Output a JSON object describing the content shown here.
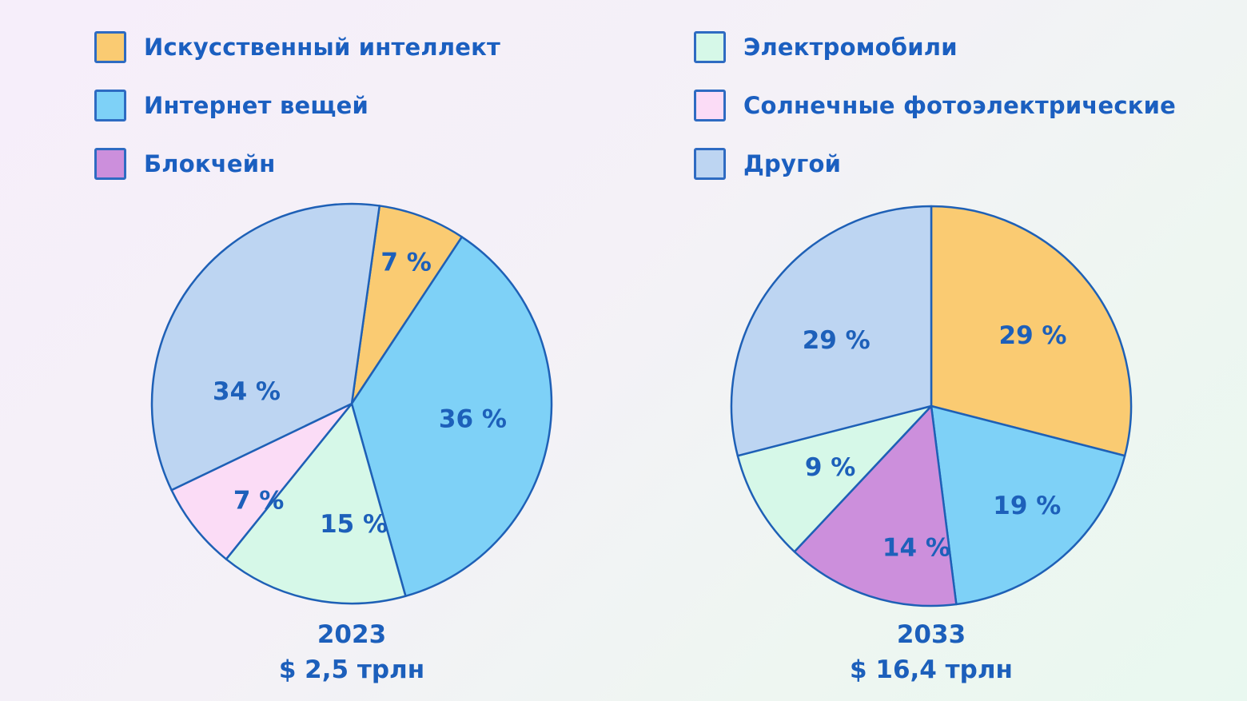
{
  "background": {
    "gradient_from": "#f6eefa",
    "gradient_to": "#e9f8f0"
  },
  "colors": {
    "text": "#1b5fc0",
    "pie_stroke": "#1e60b6",
    "swatch_border": "#2e6bc2",
    "ai_orange": "#facb72",
    "iot_blue": "#7ed1f7",
    "blockchain_purple": "#cc8fdc",
    "ev_mint": "#d6f8e8",
    "solar_pink": "#fbdcf6",
    "other_periwinkle": "#bdd5f2"
  },
  "legend": {
    "columns": [
      {
        "items": [
          {
            "label": "Искусственный интеллект",
            "color": "#facb72"
          },
          {
            "label": "Интернет вещей",
            "color": "#7ed1f7"
          },
          {
            "label": "Блокчейн",
            "color": "#cc8fdc"
          }
        ]
      },
      {
        "items": [
          {
            "label": "Электромобили",
            "color": "#d6f8e8"
          },
          {
            "label": "Солнечные фотоэлектрические",
            "color": "#fbdcf6"
          },
          {
            "label": "Другой",
            "color": "#bdd5f2"
          }
        ]
      }
    ]
  },
  "chart_data": [
    {
      "type": "pie",
      "title": "2023",
      "subtitle": "$ 2,5 трлн",
      "start_angle": 8,
      "legend_position": "top",
      "slices": [
        {
          "category": "Искусственный интеллект",
          "value": 7,
          "label": "7 %",
          "color": "#facb72"
        },
        {
          "category": "Интернет вещей",
          "value": 36,
          "label": "36 %",
          "color": "#7ed1f7"
        },
        {
          "category": "Электромобили",
          "value": 15,
          "label": "15 %",
          "color": "#d6f8e8"
        },
        {
          "category": "Солнечные фотоэлектрические",
          "value": 7,
          "label": "7 %",
          "color": "#fbdcf6"
        },
        {
          "category": "Другой",
          "value": 34,
          "label": "34 %",
          "color": "#bdd5f2"
        }
      ]
    },
    {
      "type": "pie",
      "title": "2033",
      "subtitle": "$ 16,4 трлн",
      "start_angle": 0,
      "legend_position": "top",
      "slices": [
        {
          "category": "Искусственный интеллект",
          "value": 29,
          "label": "29 %",
          "color": "#facb72"
        },
        {
          "category": "Интернет вещей",
          "value": 19,
          "label": "19 %",
          "color": "#7ed1f7"
        },
        {
          "category": "Блокчейн",
          "value": 14,
          "label": "14 %",
          "color": "#cc8fdc"
        },
        {
          "category": "Электромобили",
          "value": 9,
          "label": "9 %",
          "color": "#d6f8e8"
        },
        {
          "category": "Другой",
          "value": 29,
          "label": "29 %",
          "color": "#bdd5f2"
        }
      ]
    }
  ]
}
